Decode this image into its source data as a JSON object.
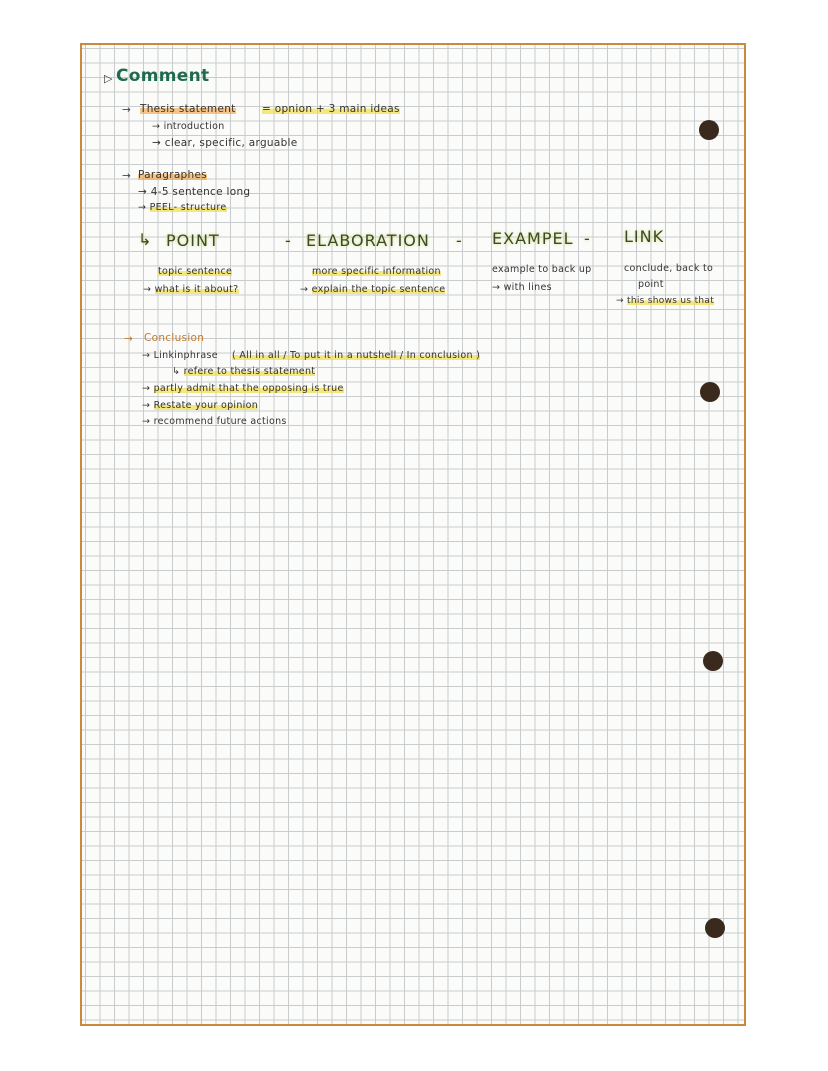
{
  "title": "Comment",
  "thesis": {
    "heading": "Thesis statement",
    "equation": "= opnion + 3 main ideas",
    "sub": [
      "introduction",
      "clear, specific, arguable"
    ]
  },
  "paragraphs": {
    "heading": "Paragraphes",
    "sub": [
      "4-5 sentence long",
      "PEEL- structure"
    ]
  },
  "peel": {
    "columns": [
      {
        "head": "POINT",
        "line1": "topic sentence",
        "line2": "what is it about?"
      },
      {
        "head": "ELABORATION",
        "line1": "more specific information",
        "line2": "explain the topic sentence"
      },
      {
        "head": "EXAMPEL",
        "line1": "example to back up",
        "line2": "with lines"
      },
      {
        "head": "LINK",
        "line1": "conclude, back to",
        "line1b": "point",
        "line2": "this shows us that"
      }
    ],
    "separator": "-"
  },
  "conclusion": {
    "heading": "Conclusion",
    "linking": "Linkinphrase",
    "linking_examples": "( All in all / To put it in a nutshell / In conclusion )",
    "refer": "refere to thesis statement",
    "items": [
      "partly admit that the opposing is true",
      "Restate your opinion",
      "recommend future actions"
    ]
  },
  "colors": {
    "paper_border": "#c98a3e",
    "title": "#1f6b4e",
    "highlight_yellow": "#f0dc3c",
    "highlight_orange": "#f0a03c"
  }
}
